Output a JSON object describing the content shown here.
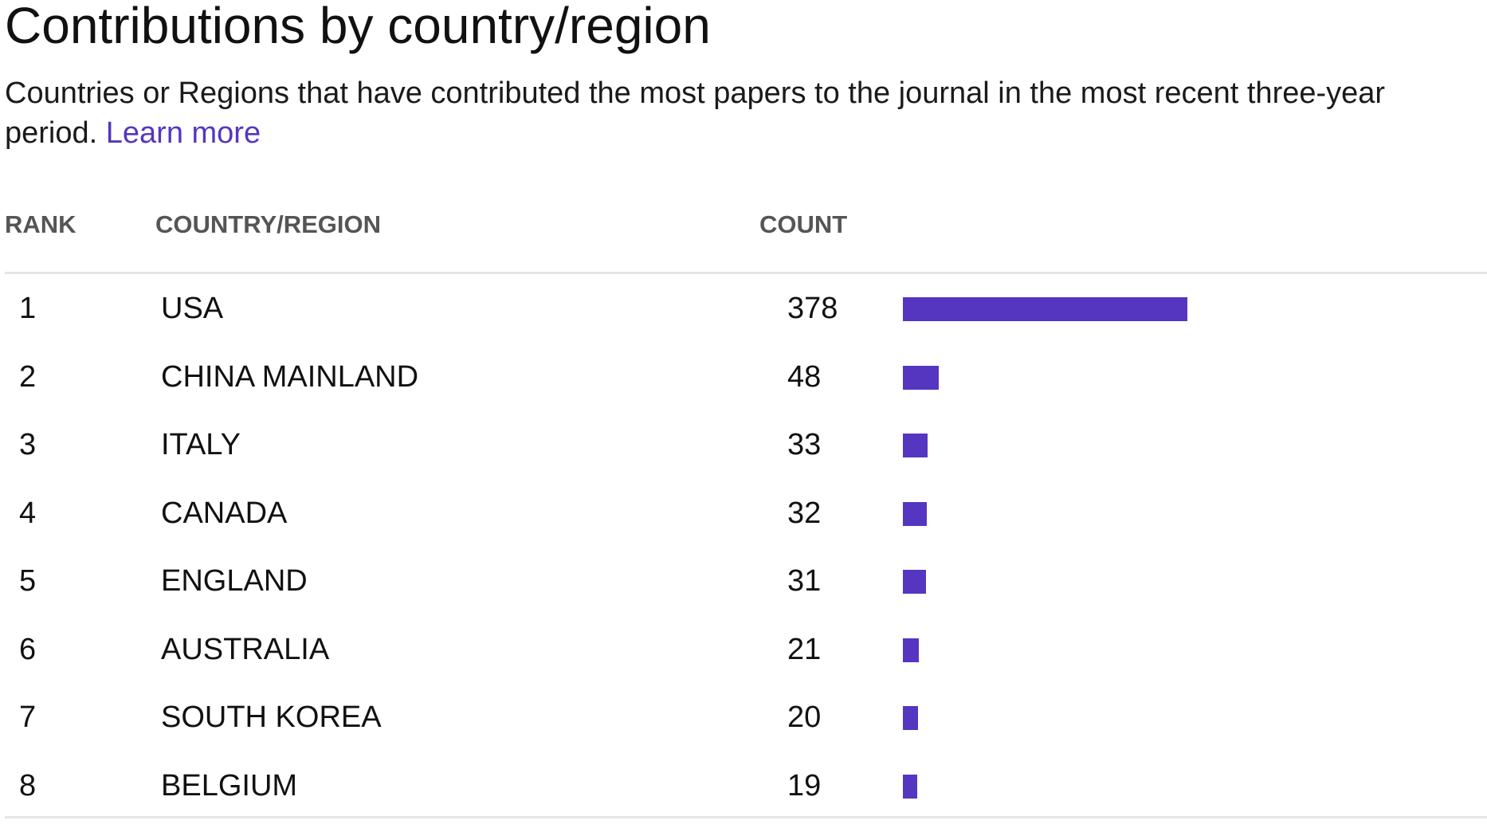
{
  "header": {
    "title": "Contributions by country/region",
    "subtitle": "Countries or Regions that have contributed the most papers to the journal in the most recent three-year period.",
    "learn_more_label": "Learn more"
  },
  "table": {
    "columns": {
      "rank": "RANK",
      "country": "COUNTRY/REGION",
      "count": "COUNT"
    },
    "max_count": 378,
    "bar_color": "#5536c1",
    "rows": [
      {
        "rank": "1",
        "country": "USA",
        "count": 378
      },
      {
        "rank": "2",
        "country": "CHINA MAINLAND",
        "count": 48
      },
      {
        "rank": "3",
        "country": "ITALY",
        "count": 33
      },
      {
        "rank": "4",
        "country": "CANADA",
        "count": 32
      },
      {
        "rank": "5",
        "country": "ENGLAND",
        "count": 31
      },
      {
        "rank": "6",
        "country": "AUSTRALIA",
        "count": 21
      },
      {
        "rank": "7",
        "country": "SOUTH KOREA",
        "count": 20
      },
      {
        "rank": "8",
        "country": "BELGIUM",
        "count": 19
      }
    ]
  }
}
